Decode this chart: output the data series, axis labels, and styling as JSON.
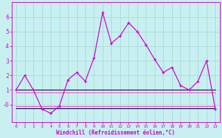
{
  "bg_color": "#c8f0f0",
  "grid_color": "#a8d8d8",
  "line_color_main": "#cc00cc",
  "line_color_dark": "#330033",
  "line_color_pink": "#ff44cc",
  "xlabel": "Windchill (Refroidissement éolien,°C)",
  "xlim": [
    -0.5,
    23.5
  ],
  "ylim": [
    -1.2,
    7.0
  ],
  "ytick_vals": [
    0,
    1,
    2,
    3,
    4,
    5,
    6
  ],
  "ytick_labels": [
    "-0",
    "1",
    "2",
    "3",
    "4",
    "5",
    "6"
  ],
  "xticks": [
    0,
    1,
    2,
    3,
    4,
    5,
    6,
    7,
    8,
    9,
    10,
    11,
    12,
    13,
    14,
    15,
    16,
    17,
    18,
    19,
    20,
    21,
    22,
    23
  ],
  "main_series_x": [
    0,
    1,
    2,
    3,
    4,
    5,
    6,
    7,
    8,
    9,
    10,
    11,
    12,
    13,
    14,
    15,
    16,
    17,
    18,
    19,
    20,
    21,
    22,
    23
  ],
  "main_series_y": [
    1.0,
    2.0,
    1.0,
    -0.3,
    -0.6,
    -0.1,
    1.7,
    2.2,
    1.6,
    3.2,
    6.3,
    4.2,
    4.7,
    5.6,
    5.0,
    4.1,
    3.1,
    2.2,
    2.55,
    1.3,
    1.0,
    1.6,
    3.0,
    -0.3
  ],
  "stat_line1_x": [
    0,
    23
  ],
  "stat_line1_y": [
    1.0,
    1.0
  ],
  "stat_line1_color": "#000044",
  "stat_line2_x": [
    0,
    23
  ],
  "stat_line2_y": [
    0.85,
    0.85
  ],
  "stat_line2_color": "#ff44cc",
  "stat_line3_x": [
    0,
    23
  ],
  "stat_line3_y": [
    -0.25,
    -0.25
  ],
  "stat_line3_color": "#000044",
  "stat_line4_x": [
    0,
    23
  ],
  "stat_line4_y": [
    -0.1,
    -0.1
  ],
  "stat_line4_color": "#ff44cc"
}
